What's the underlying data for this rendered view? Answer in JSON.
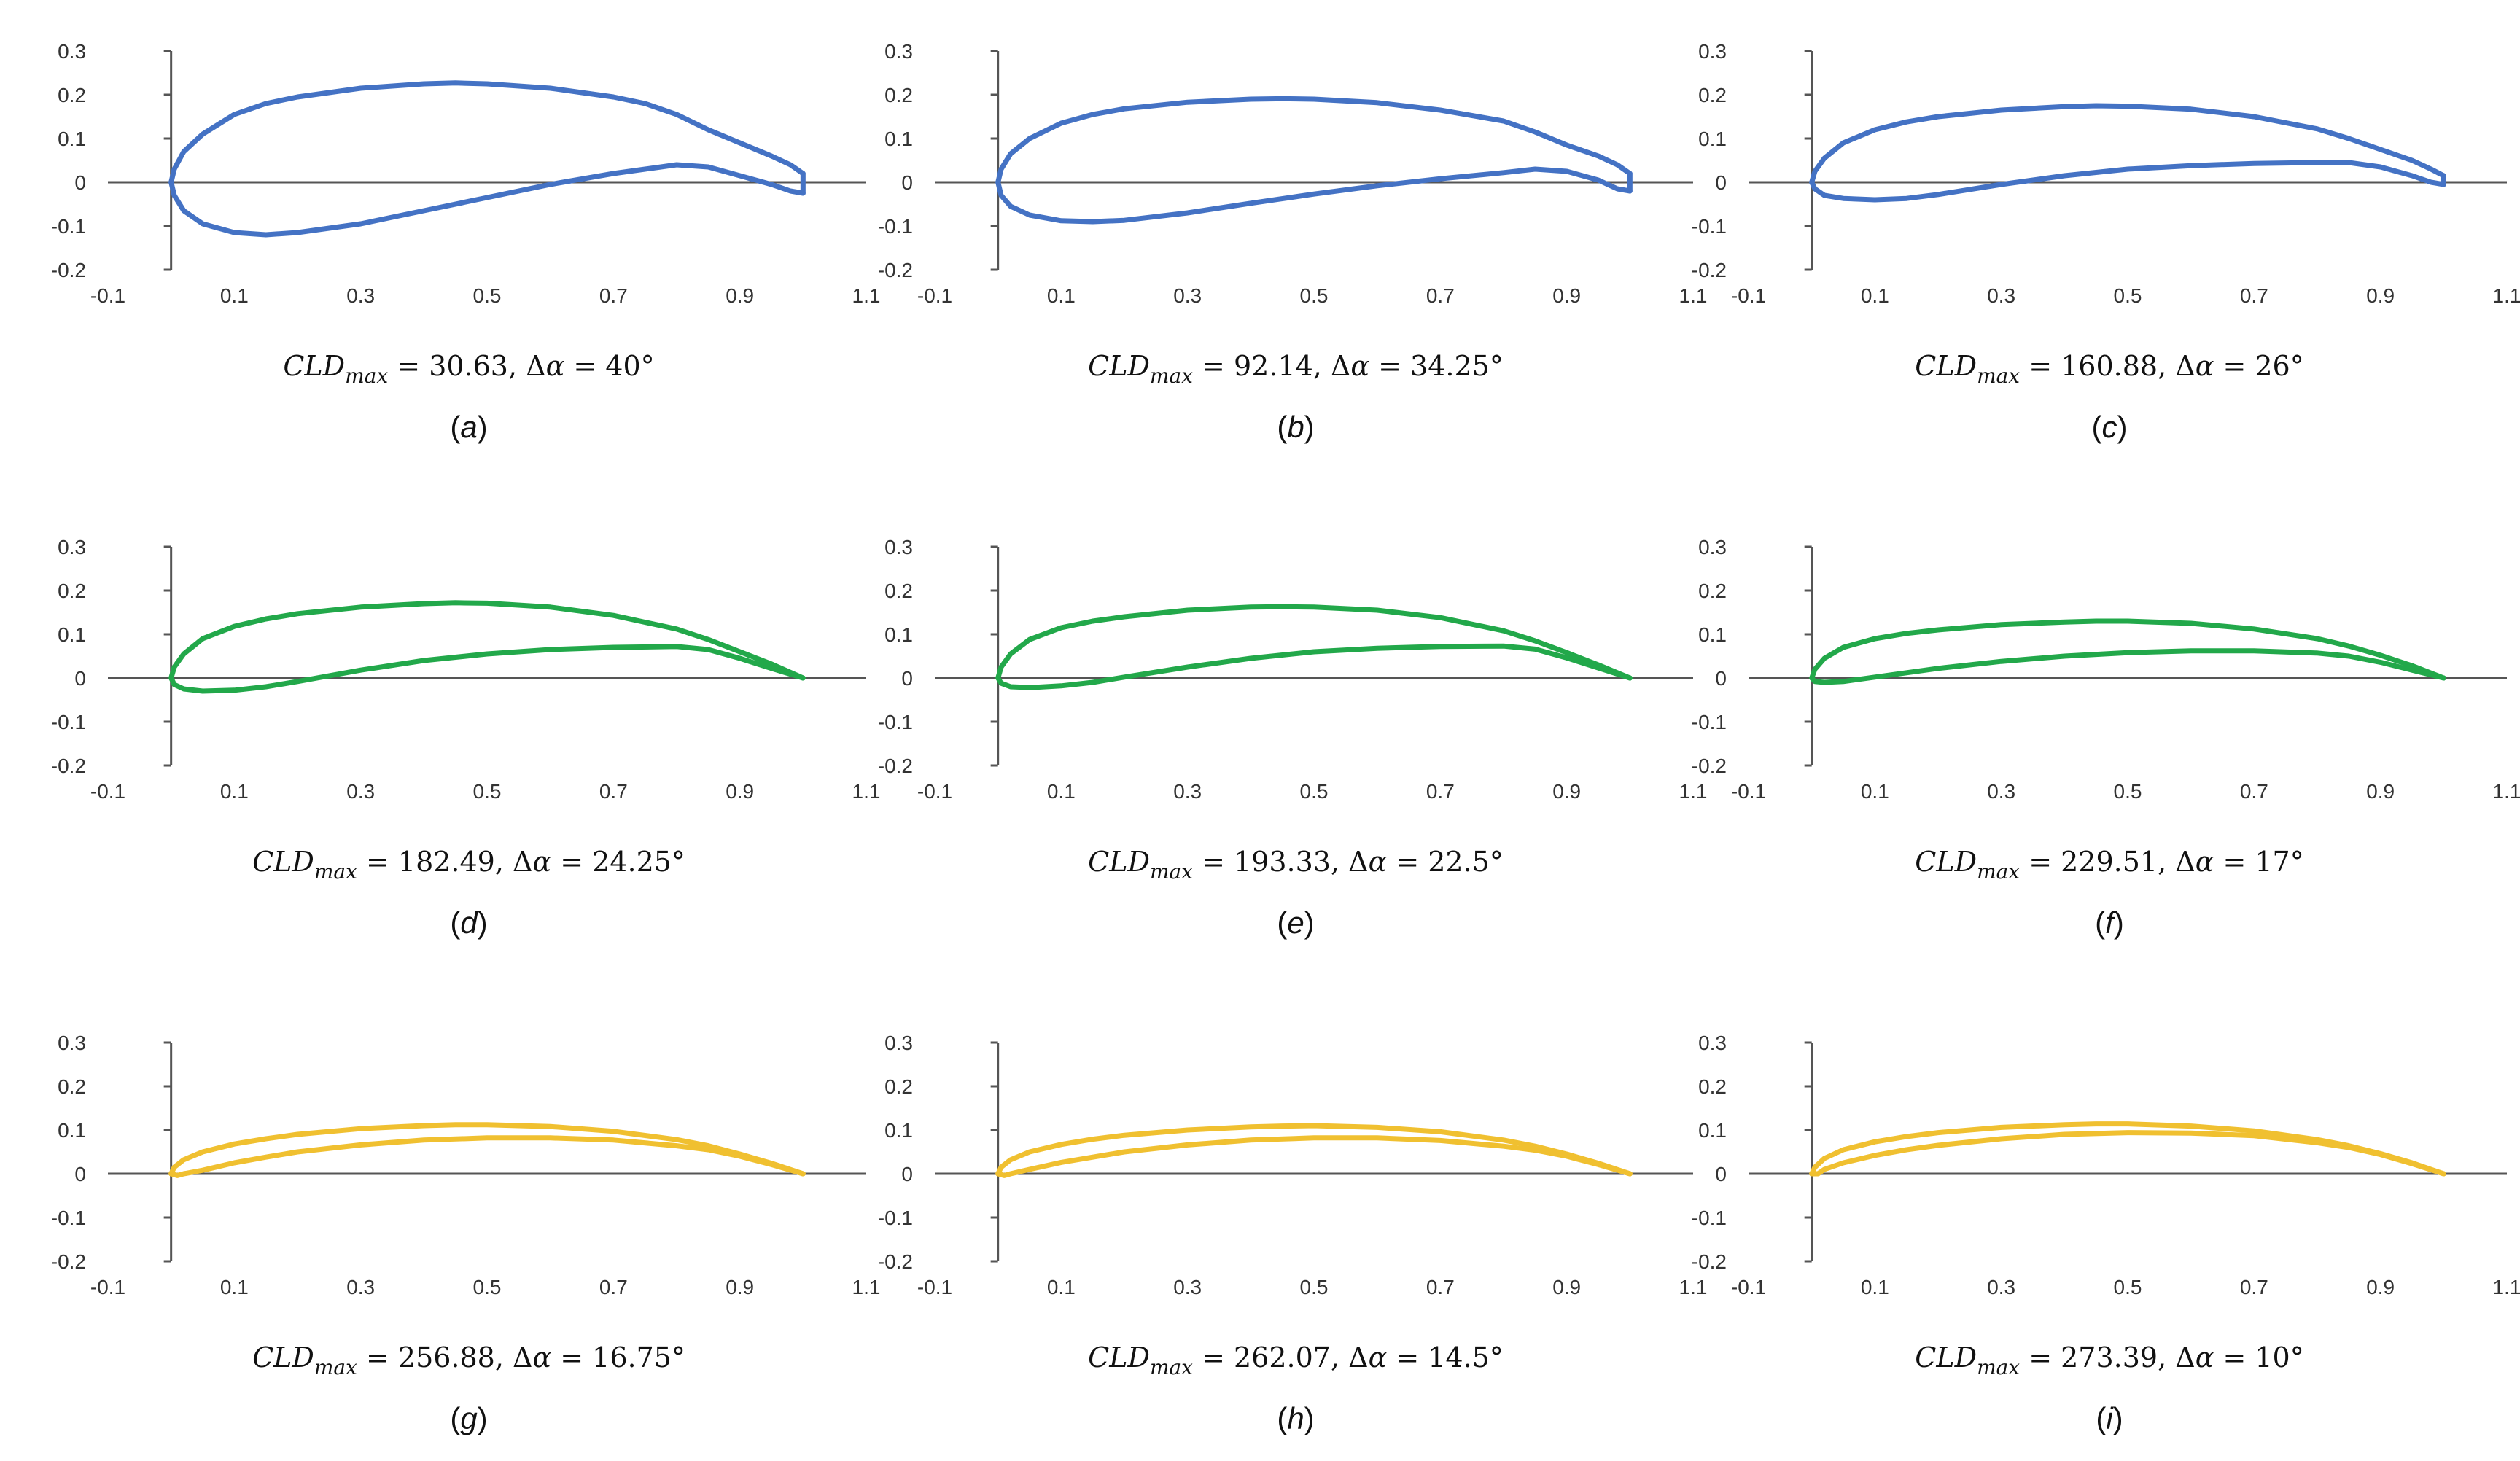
{
  "figure": {
    "colors": {
      "blue": "#4472C4",
      "green": "#22A84A",
      "yellow": "#F0C030"
    }
  },
  "chart_data": [
    {
      "type": "line",
      "label": "a",
      "color": "#4472C4",
      "caption": {
        "cld": "30.63",
        "dalpha": "40°"
      },
      "xlim": [
        -0.1,
        1.1
      ],
      "ylim": [
        -0.2,
        0.3
      ],
      "xticks": [
        "-0.1",
        "0.1",
        "0.3",
        "0.5",
        "0.7",
        "0.9",
        "1.1"
      ],
      "yticks": [
        "0.3",
        "0.2",
        "0.1",
        "0",
        "-0.1",
        "-0.2"
      ],
      "upper": {
        "x": [
          0,
          0.005,
          0.02,
          0.05,
          0.1,
          0.15,
          0.2,
          0.3,
          0.4,
          0.45,
          0.5,
          0.6,
          0.7,
          0.75,
          0.8,
          0.85,
          0.9,
          0.95,
          0.98,
          1.0
        ],
        "y": [
          0,
          0.03,
          0.07,
          0.11,
          0.155,
          0.18,
          0.195,
          0.215,
          0.225,
          0.227,
          0.225,
          0.215,
          0.195,
          0.18,
          0.155,
          0.12,
          0.09,
          0.06,
          0.04,
          0.02
        ]
      },
      "lower": {
        "x": [
          0,
          0.005,
          0.02,
          0.05,
          0.1,
          0.15,
          0.2,
          0.3,
          0.4,
          0.5,
          0.6,
          0.7,
          0.75,
          0.8,
          0.85,
          0.9,
          0.95,
          0.98,
          1.0
        ],
        "y": [
          0,
          -0.03,
          -0.065,
          -0.095,
          -0.115,
          -0.12,
          -0.115,
          -0.095,
          -0.065,
          -0.035,
          -0.005,
          0.02,
          0.03,
          0.04,
          0.035,
          0.015,
          -0.005,
          -0.02,
          -0.025
        ]
      }
    },
    {
      "type": "line",
      "label": "b",
      "color": "#4472C4",
      "caption": {
        "cld": "92.14",
        "dalpha": "34.25°"
      },
      "xlim": [
        -0.1,
        1.1
      ],
      "ylim": [
        -0.2,
        0.3
      ],
      "xticks": [
        "-0.1",
        "0.1",
        "0.3",
        "0.5",
        "0.7",
        "0.9",
        "1.1"
      ],
      "yticks": [
        "0.3",
        "0.2",
        "0.1",
        "0",
        "-0.1",
        "-0.2"
      ],
      "upper": {
        "x": [
          0,
          0.005,
          0.02,
          0.05,
          0.1,
          0.15,
          0.2,
          0.3,
          0.4,
          0.45,
          0.5,
          0.6,
          0.7,
          0.8,
          0.85,
          0.9,
          0.95,
          0.98,
          1.0
        ],
        "y": [
          0,
          0.03,
          0.065,
          0.1,
          0.135,
          0.155,
          0.168,
          0.183,
          0.19,
          0.191,
          0.19,
          0.182,
          0.165,
          0.14,
          0.115,
          0.085,
          0.06,
          0.04,
          0.02
        ]
      },
      "lower": {
        "x": [
          0,
          0.005,
          0.02,
          0.05,
          0.1,
          0.15,
          0.2,
          0.3,
          0.4,
          0.5,
          0.6,
          0.7,
          0.8,
          0.85,
          0.9,
          0.95,
          0.98,
          1.0
        ],
        "y": [
          0,
          -0.03,
          -0.055,
          -0.075,
          -0.088,
          -0.09,
          -0.087,
          -0.07,
          -0.048,
          -0.027,
          -0.008,
          0.008,
          0.022,
          0.03,
          0.025,
          0.005,
          -0.015,
          -0.02
        ]
      }
    },
    {
      "type": "line",
      "label": "c",
      "color": "#4472C4",
      "caption": {
        "cld": "160.88",
        "dalpha": "26°"
      },
      "xlim": [
        -0.1,
        1.1
      ],
      "ylim": [
        -0.2,
        0.3
      ],
      "xticks": [
        "-0.1",
        "0.1",
        "0.3",
        "0.5",
        "0.7",
        "0.9",
        "1.1"
      ],
      "yticks": [
        "0.3",
        "0.2",
        "0.1",
        "0",
        "-0.1",
        "-0.2"
      ],
      "upper": {
        "x": [
          0,
          0.005,
          0.02,
          0.05,
          0.1,
          0.15,
          0.2,
          0.3,
          0.4,
          0.45,
          0.5,
          0.6,
          0.7,
          0.8,
          0.85,
          0.9,
          0.95,
          0.98,
          1.0
        ],
        "y": [
          0,
          0.025,
          0.055,
          0.09,
          0.12,
          0.138,
          0.15,
          0.165,
          0.173,
          0.175,
          0.174,
          0.167,
          0.15,
          0.122,
          0.1,
          0.075,
          0.05,
          0.03,
          0.015
        ]
      },
      "lower": {
        "x": [
          0,
          0.005,
          0.02,
          0.05,
          0.1,
          0.15,
          0.2,
          0.3,
          0.4,
          0.5,
          0.6,
          0.7,
          0.8,
          0.85,
          0.9,
          0.95,
          0.98,
          1.0
        ],
        "y": [
          0,
          -0.015,
          -0.03,
          -0.037,
          -0.04,
          -0.037,
          -0.028,
          -0.005,
          0.015,
          0.03,
          0.038,
          0.043,
          0.045,
          0.045,
          0.035,
          0.015,
          0.0,
          -0.005
        ]
      }
    },
    {
      "type": "line",
      "label": "d",
      "color": "#22A84A",
      "caption": {
        "cld": "182.49",
        "dalpha": "24.25°"
      },
      "xlim": [
        -0.1,
        1.1
      ],
      "ylim": [
        -0.2,
        0.3
      ],
      "xticks": [
        "-0.1",
        "0.1",
        "0.3",
        "0.5",
        "0.7",
        "0.9",
        "1.1"
      ],
      "yticks": [
        "0.3",
        "0.2",
        "0.1",
        "0",
        "-0.1",
        "-0.2"
      ],
      "upper": {
        "x": [
          0,
          0.005,
          0.02,
          0.05,
          0.1,
          0.15,
          0.2,
          0.3,
          0.4,
          0.45,
          0.5,
          0.6,
          0.7,
          0.8,
          0.85,
          0.9,
          0.95,
          1.0
        ],
        "y": [
          0,
          0.025,
          0.055,
          0.09,
          0.118,
          0.135,
          0.147,
          0.162,
          0.17,
          0.172,
          0.171,
          0.162,
          0.143,
          0.112,
          0.088,
          0.06,
          0.032,
          0.0
        ]
      },
      "lower": {
        "x": [
          0,
          0.005,
          0.02,
          0.05,
          0.1,
          0.15,
          0.2,
          0.3,
          0.4,
          0.5,
          0.6,
          0.7,
          0.8,
          0.85,
          0.9,
          0.95,
          1.0
        ],
        "y": [
          0,
          -0.015,
          -0.025,
          -0.03,
          -0.028,
          -0.02,
          -0.008,
          0.018,
          0.04,
          0.055,
          0.065,
          0.07,
          0.072,
          0.065,
          0.045,
          0.022,
          0.0
        ]
      }
    },
    {
      "type": "line",
      "label": "e",
      "color": "#22A84A",
      "caption": {
        "cld": "193.33",
        "dalpha": "22.5°"
      },
      "xlim": [
        -0.1,
        1.1
      ],
      "ylim": [
        -0.2,
        0.3
      ],
      "xticks": [
        "-0.1",
        "0.1",
        "0.3",
        "0.5",
        "0.7",
        "0.9",
        "1.1"
      ],
      "yticks": [
        "0.3",
        "0.2",
        "0.1",
        "0",
        "-0.1",
        "-0.2"
      ],
      "upper": {
        "x": [
          0,
          0.005,
          0.02,
          0.05,
          0.1,
          0.15,
          0.2,
          0.3,
          0.4,
          0.45,
          0.5,
          0.6,
          0.7,
          0.8,
          0.85,
          0.9,
          0.95,
          1.0
        ],
        "y": [
          0,
          0.025,
          0.055,
          0.088,
          0.115,
          0.13,
          0.14,
          0.155,
          0.162,
          0.163,
          0.162,
          0.155,
          0.138,
          0.108,
          0.085,
          0.058,
          0.03,
          0.0
        ]
      },
      "lower": {
        "x": [
          0,
          0.005,
          0.02,
          0.05,
          0.1,
          0.15,
          0.2,
          0.3,
          0.4,
          0.5,
          0.6,
          0.7,
          0.8,
          0.85,
          0.9,
          0.95,
          1.0
        ],
        "y": [
          0,
          -0.012,
          -0.02,
          -0.022,
          -0.018,
          -0.01,
          0.002,
          0.025,
          0.045,
          0.06,
          0.068,
          0.072,
          0.073,
          0.066,
          0.046,
          0.023,
          0.0
        ]
      }
    },
    {
      "type": "line",
      "label": "f",
      "color": "#22A84A",
      "caption": {
        "cld": "229.51",
        "dalpha": "17°"
      },
      "xlim": [
        -0.1,
        1.1
      ],
      "ylim": [
        -0.2,
        0.3
      ],
      "xticks": [
        "-0.1",
        "0.1",
        "0.3",
        "0.5",
        "0.7",
        "0.9",
        "1.1"
      ],
      "yticks": [
        "0.3",
        "0.2",
        "0.1",
        "0",
        "-0.1",
        "-0.2"
      ],
      "upper": {
        "x": [
          0,
          0.005,
          0.02,
          0.05,
          0.1,
          0.15,
          0.2,
          0.3,
          0.4,
          0.45,
          0.5,
          0.6,
          0.7,
          0.8,
          0.85,
          0.9,
          0.95,
          1.0
        ],
        "y": [
          0,
          0.02,
          0.045,
          0.07,
          0.09,
          0.102,
          0.11,
          0.122,
          0.128,
          0.13,
          0.13,
          0.125,
          0.112,
          0.09,
          0.073,
          0.052,
          0.028,
          0.0
        ]
      },
      "lower": {
        "x": [
          0,
          0.005,
          0.02,
          0.05,
          0.1,
          0.15,
          0.2,
          0.3,
          0.4,
          0.5,
          0.6,
          0.7,
          0.8,
          0.85,
          0.9,
          0.95,
          1.0
        ],
        "y": [
          0,
          -0.008,
          -0.01,
          -0.008,
          0.002,
          0.012,
          0.022,
          0.038,
          0.05,
          0.058,
          0.062,
          0.062,
          0.057,
          0.05,
          0.036,
          0.018,
          0.0
        ]
      }
    },
    {
      "type": "line",
      "label": "g",
      "color": "#F0C030",
      "caption": {
        "cld": "256.88",
        "dalpha": "16.75°"
      },
      "xlim": [
        -0.1,
        1.1
      ],
      "ylim": [
        -0.2,
        0.3
      ],
      "xticks": [
        "-0.1",
        "0.1",
        "0.3",
        "0.5",
        "0.7",
        "0.9",
        "1.1"
      ],
      "yticks": [
        "0.3",
        "0.2",
        "0.1",
        "0",
        "-0.1",
        "-0.2"
      ],
      "upper": {
        "x": [
          0,
          0.005,
          0.02,
          0.05,
          0.1,
          0.15,
          0.2,
          0.3,
          0.4,
          0.45,
          0.5,
          0.6,
          0.7,
          0.8,
          0.85,
          0.9,
          0.95,
          1.0
        ],
        "y": [
          0,
          0.015,
          0.032,
          0.05,
          0.068,
          0.08,
          0.09,
          0.103,
          0.11,
          0.112,
          0.112,
          0.108,
          0.097,
          0.078,
          0.064,
          0.045,
          0.024,
          0.0
        ]
      },
      "lower": {
        "x": [
          0,
          0.01,
          0.02,
          0.05,
          0.1,
          0.15,
          0.2,
          0.3,
          0.4,
          0.5,
          0.6,
          0.7,
          0.8,
          0.85,
          0.9,
          0.95,
          1.0
        ],
        "y": [
          0,
          -0.004,
          0.0,
          0.008,
          0.025,
          0.038,
          0.05,
          0.066,
          0.077,
          0.082,
          0.082,
          0.077,
          0.064,
          0.055,
          0.04,
          0.021,
          0.0
        ]
      }
    },
    {
      "type": "line",
      "label": "h",
      "color": "#F0C030",
      "caption": {
        "cld": "262.07",
        "dalpha": "14.5°"
      },
      "xlim": [
        -0.1,
        1.1
      ],
      "ylim": [
        -0.2,
        0.3
      ],
      "xticks": [
        "-0.1",
        "0.1",
        "0.3",
        "0.5",
        "0.7",
        "0.9",
        "1.1"
      ],
      "yticks": [
        "0.3",
        "0.2",
        "0.1",
        "0",
        "-0.1",
        "-0.2"
      ],
      "upper": {
        "x": [
          0,
          0.005,
          0.02,
          0.05,
          0.1,
          0.15,
          0.2,
          0.3,
          0.4,
          0.45,
          0.5,
          0.6,
          0.7,
          0.8,
          0.85,
          0.9,
          0.95,
          1.0
        ],
        "y": [
          0,
          0.015,
          0.032,
          0.05,
          0.067,
          0.079,
          0.088,
          0.1,
          0.107,
          0.109,
          0.11,
          0.106,
          0.096,
          0.077,
          0.063,
          0.045,
          0.024,
          0.0
        ]
      },
      "lower": {
        "x": [
          0,
          0.01,
          0.02,
          0.05,
          0.1,
          0.15,
          0.2,
          0.3,
          0.4,
          0.5,
          0.6,
          0.7,
          0.8,
          0.85,
          0.9,
          0.95,
          1.0
        ],
        "y": [
          0,
          -0.004,
          0.0,
          0.01,
          0.026,
          0.038,
          0.05,
          0.066,
          0.077,
          0.082,
          0.082,
          0.076,
          0.063,
          0.054,
          0.04,
          0.021,
          0.0
        ]
      }
    },
    {
      "type": "line",
      "label": "i",
      "color": "#F0C030",
      "caption": {
        "cld": "273.39",
        "dalpha": "10°"
      },
      "xlim": [
        -0.1,
        1.1
      ],
      "ylim": [
        -0.2,
        0.3
      ],
      "xticks": [
        "-0.1",
        "0.1",
        "0.3",
        "0.5",
        "0.7",
        "0.9",
        "1.1"
      ],
      "yticks": [
        "0.3",
        "0.2",
        "0.1",
        "0",
        "-0.1",
        "-0.2"
      ],
      "upper": {
        "x": [
          0,
          0.005,
          0.02,
          0.05,
          0.1,
          0.15,
          0.2,
          0.3,
          0.4,
          0.45,
          0.5,
          0.6,
          0.7,
          0.8,
          0.85,
          0.9,
          0.95,
          1.0
        ],
        "y": [
          0,
          0.015,
          0.035,
          0.055,
          0.073,
          0.085,
          0.094,
          0.106,
          0.112,
          0.114,
          0.114,
          0.109,
          0.098,
          0.078,
          0.064,
          0.046,
          0.025,
          0.0
        ]
      },
      "lower": {
        "x": [
          0,
          0.01,
          0.02,
          0.05,
          0.1,
          0.15,
          0.2,
          0.3,
          0.4,
          0.5,
          0.6,
          0.7,
          0.8,
          0.85,
          0.9,
          0.95,
          1.0
        ],
        "y": [
          0,
          0.0,
          0.01,
          0.025,
          0.042,
          0.055,
          0.065,
          0.08,
          0.09,
          0.094,
          0.093,
          0.087,
          0.071,
          0.06,
          0.044,
          0.023,
          0.0
        ]
      }
    }
  ]
}
